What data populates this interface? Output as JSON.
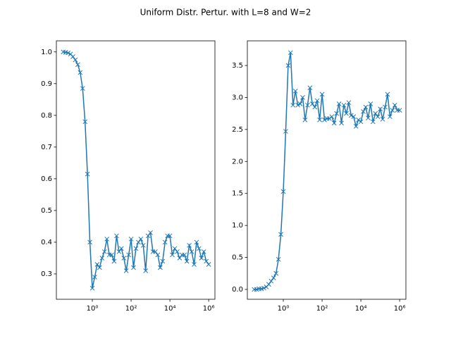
{
  "title": "Uniform Distr. Pertur. with L=8 and W=2",
  "chart_data": [
    {
      "type": "line",
      "marker": "x",
      "color": "#1f77b4",
      "xscale": "log",
      "x": [
        0.0316,
        0.0422,
        0.0562,
        0.075,
        0.1,
        0.133,
        0.178,
        0.237,
        0.316,
        0.422,
        0.562,
        0.75,
        1,
        1.33,
        1.78,
        2.37,
        3.16,
        4.22,
        5.62,
        7.5,
        10,
        13.3,
        17.8,
        23.7,
        31.6,
        42.2,
        56.2,
        75,
        100,
        133,
        178,
        237,
        316,
        422,
        562,
        750,
        1000,
        1330,
        1780,
        2370,
        3160,
        4220,
        5620,
        7500,
        10000,
        13300,
        17800,
        23700,
        31600,
        42200,
        56200,
        75000,
        100000,
        133000,
        178000,
        237000,
        316000,
        422000,
        562000,
        750000,
        1000000
      ],
      "values": [
        1.0,
        0.999,
        0.997,
        0.993,
        0.985,
        0.975,
        0.96,
        0.935,
        0.885,
        0.78,
        0.615,
        0.4,
        0.255,
        0.29,
        0.33,
        0.32,
        0.35,
        0.37,
        0.41,
        0.36,
        0.36,
        0.34,
        0.42,
        0.37,
        0.38,
        0.35,
        0.31,
        0.36,
        0.41,
        0.32,
        0.38,
        0.4,
        0.41,
        0.39,
        0.31,
        0.42,
        0.43,
        0.37,
        0.37,
        0.36,
        0.32,
        0.34,
        0.4,
        0.42,
        0.42,
        0.36,
        0.38,
        0.37,
        0.35,
        0.36,
        0.36,
        0.34,
        0.39,
        0.37,
        0.33,
        0.4,
        0.38,
        0.35,
        0.37,
        0.34,
        0.33
      ],
      "xlim": [
        0.014,
        2100000
      ],
      "xticks": [
        {
          "value": 1,
          "label": "10⁰"
        },
        {
          "value": 100,
          "label": "10²"
        },
        {
          "value": 10000,
          "label": "10⁴"
        },
        {
          "value": 1000000,
          "label": "10⁶"
        }
      ],
      "ylim": [
        0.22,
        1.035
      ],
      "yticks": [
        0.3,
        0.4,
        0.5,
        0.6,
        0.7,
        0.8,
        0.9,
        {
          "value": 1,
          "label": "1.0"
        }
      ]
    },
    {
      "type": "line",
      "marker": "x",
      "color": "#1f77b4",
      "xscale": "log",
      "x": [
        0.0316,
        0.0422,
        0.0562,
        0.075,
        0.1,
        0.133,
        0.178,
        0.237,
        0.316,
        0.422,
        0.562,
        0.75,
        1,
        1.33,
        1.78,
        2.37,
        3.16,
        4.22,
        5.62,
        7.5,
        10,
        13.3,
        17.8,
        23.7,
        31.6,
        42.2,
        56.2,
        75,
        100,
        133,
        178,
        237,
        316,
        422,
        562,
        750,
        1000,
        1330,
        1780,
        2370,
        3160,
        4220,
        5620,
        7500,
        10000,
        13300,
        17800,
        23700,
        31600,
        42200,
        56200,
        75000,
        100000,
        133000,
        178000,
        237000,
        316000,
        422000,
        562000,
        750000,
        1000000
      ],
      "values": [
        0.0,
        0.0,
        0.01,
        0.01,
        0.02,
        0.04,
        0.08,
        0.13,
        0.18,
        0.25,
        0.47,
        0.86,
        1.53,
        2.47,
        3.5,
        3.7,
        2.88,
        3.1,
        2.88,
        2.9,
        3.0,
        2.65,
        2.88,
        3.15,
        2.9,
        2.85,
        2.95,
        2.65,
        3.05,
        2.65,
        2.67,
        2.67,
        2.7,
        2.6,
        2.75,
        2.9,
        2.6,
        2.88,
        2.75,
        2.92,
        2.72,
        2.7,
        2.55,
        2.65,
        2.62,
        2.78,
        2.85,
        2.68,
        2.9,
        2.62,
        2.75,
        2.7,
        2.82,
        2.66,
        2.85,
        3.05,
        2.7,
        2.8,
        2.88,
        2.8,
        2.8
      ],
      "xlim": [
        0.014,
        2100000
      ],
      "xticks": [
        {
          "value": 1,
          "label": "10⁰"
        },
        {
          "value": 100,
          "label": "10²"
        },
        {
          "value": 10000,
          "label": "10⁴"
        },
        {
          "value": 1000000,
          "label": "10⁶"
        }
      ],
      "ylim": [
        -0.154,
        3.885
      ],
      "yticks": [
        {
          "value": 0,
          "label": "0.0"
        },
        0.5,
        {
          "value": 1,
          "label": "1.0"
        },
        1.5,
        {
          "value": 2,
          "label": "2.0"
        },
        2.5,
        {
          "value": 3,
          "label": "3.0"
        },
        3.5
      ]
    }
  ]
}
